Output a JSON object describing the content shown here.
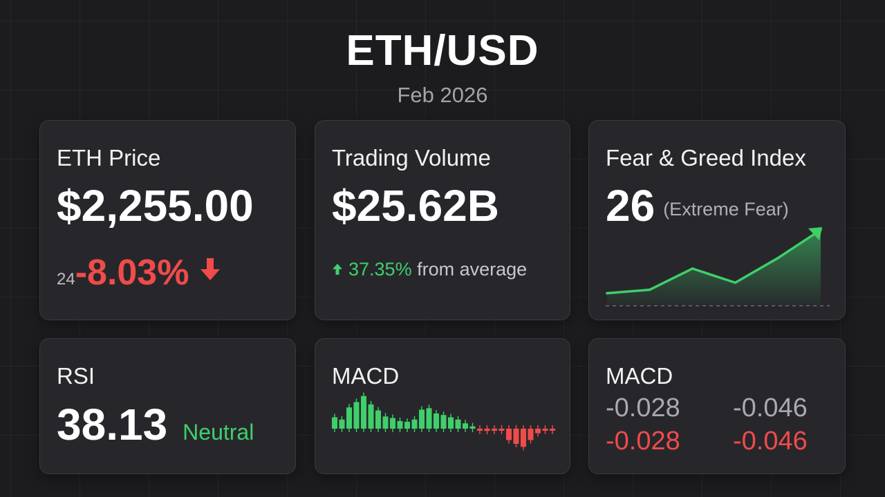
{
  "header": {
    "title": "ETH/USD",
    "subtitle": "Feb 2026"
  },
  "colors": {
    "positive": "#3fcf6b",
    "negative": "#f04b4b",
    "card": "#27272b",
    "background": "#1c1c1f"
  },
  "price_card": {
    "label": "ETH Price",
    "value": "$2,255.00",
    "change_prefix": "24",
    "change": "-8.03%",
    "direction_icon": "arrow-down-icon"
  },
  "volume_card": {
    "label": "Trading Volume",
    "value": "$25.62B",
    "change_pct": "37.35%",
    "change_text": "from average",
    "direction_icon": "arrow-up-icon"
  },
  "fear_greed_card": {
    "label": "Fear & Greed Index",
    "value": "26",
    "sentiment": "(Extreme Fear)",
    "trend_icon": "trend-arrow-icon"
  },
  "rsi_card": {
    "label": "RSI",
    "value": "38.13",
    "status": "Neutral"
  },
  "macd_chart_card": {
    "label": "MACD"
  },
  "macd_values_card": {
    "label": "MACD",
    "row1": [
      "-0.028",
      "-0.046"
    ],
    "row2": [
      "-0.028",
      "-0.046"
    ]
  },
  "chart_data": [
    {
      "type": "area",
      "title": "",
      "x": [
        1,
        2,
        3,
        4,
        5,
        6
      ],
      "values": [
        2,
        3,
        9,
        5,
        12,
        20
      ],
      "baseline": 0,
      "color": "#3fcf6b"
    },
    {
      "type": "bar",
      "title": "",
      "values": [
        1.5,
        1.2,
        2.8,
        3.5,
        4.3,
        3.2,
        2.4,
        1.6,
        1.4,
        1.0,
        0.9,
        1.2,
        2.5,
        2.7,
        2.0,
        1.8,
        1.5,
        1.2,
        0.7,
        0.3,
        -0.1,
        -0.3,
        -0.2,
        -0.2,
        -1.5,
        -2.0,
        -2.4,
        -1.5,
        -0.6,
        -0.2,
        -0.1
      ]
    }
  ]
}
